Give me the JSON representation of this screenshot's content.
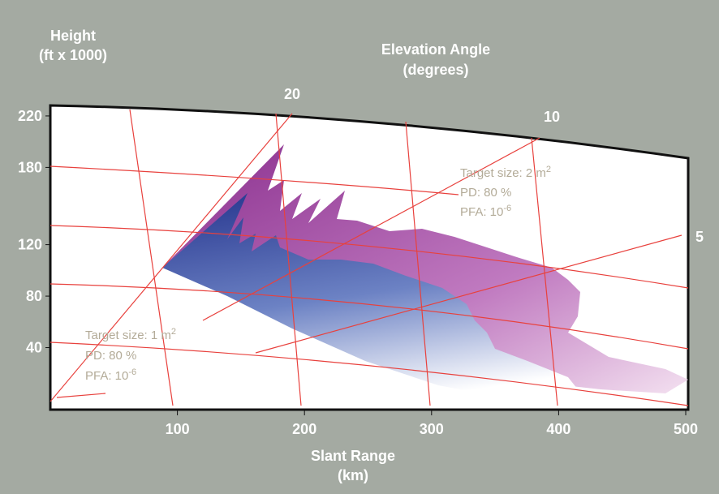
{
  "chart_data": {
    "type": "radar-coverage",
    "ylabel": "Height",
    "ylabel_unit": "(ft x 1000)",
    "xlabel": "Slant Range",
    "xlabel_unit": "(km)",
    "angle_label": "Elevation Angle",
    "angle_unit": "(degrees)",
    "angle_ticks": [
      "20",
      "10",
      "5"
    ],
    "xlim": [
      0,
      500
    ],
    "xticks": [
      100,
      200,
      300,
      400,
      500
    ],
    "ylim": [
      0,
      225
    ],
    "yticks": [
      40,
      80,
      120,
      180,
      220
    ],
    "annotations": [
      {
        "size": "Target size: 2 m",
        "size_exp": "2",
        "pd": "PD: 80 %",
        "pfa": "PFA: 10",
        "pfa_exp": "-6"
      },
      {
        "size": "Target size: 1 m",
        "size_exp": "2",
        "pd": "PD: 80 %",
        "pfa": "PFA: 10",
        "pfa_exp": "-6"
      }
    ]
  }
}
